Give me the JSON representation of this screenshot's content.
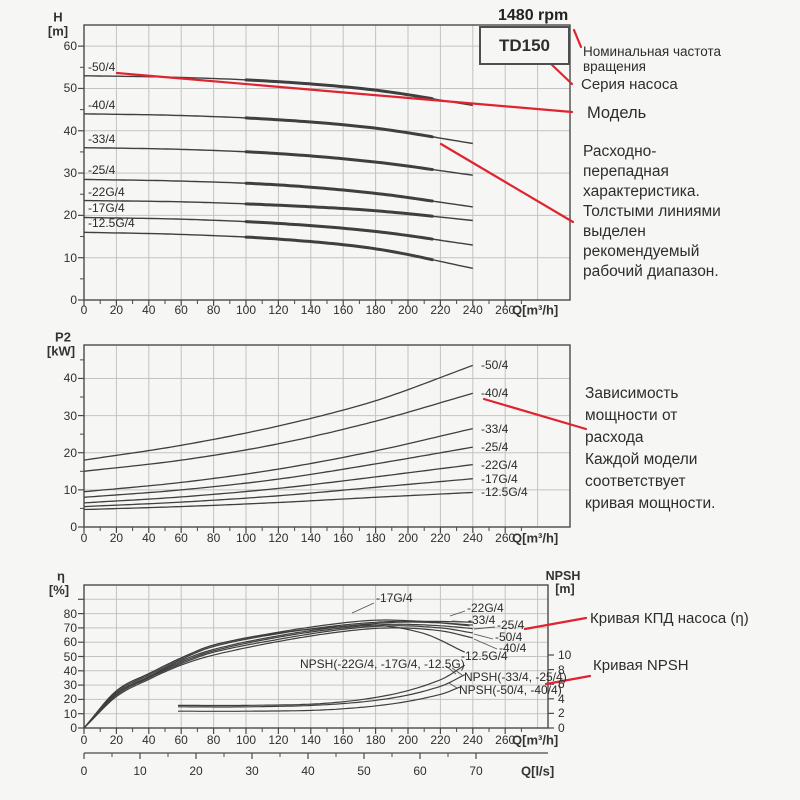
{
  "colors": {
    "accent_red": "#df2430",
    "curve": "#3f3f3f",
    "grid": "#c3c3c3",
    "border": "#4a4a4a",
    "text": "#2e2e2e"
  },
  "header": {
    "rpm": "1480 rpm",
    "series": "TD150"
  },
  "annotations": {
    "rpm_note": "Номинальная частота\nвращения",
    "series_note": "Серия насоса",
    "model_note": "Модель",
    "flow_note": "Расходно-\nперепадная\nхарактеристика.\nТолстыми линиями\nвыделен\nрекомендуемый\nрабочий диапазон.",
    "power_note": "Зависимость\nмощности от\nрасхода\nКаждой модели\nсоответствует\nкривая мощности.",
    "eta_note": "Кривая КПД насоса (η)",
    "npsh_note": "Кривая NPSH"
  },
  "chart_data": [
    {
      "id": "head",
      "type": "line",
      "title": "Head vs flow curves",
      "xlabel": "Q[m³/h]",
      "ylabel": "H",
      "yunit": "[m]",
      "xlim": [
        0,
        300
      ],
      "ylim": [
        0,
        65
      ],
      "x_ticks": [
        0,
        20,
        40,
        60,
        80,
        100,
        120,
        140,
        160,
        180,
        200,
        220,
        240,
        260
      ],
      "y_ticks": [
        0,
        10,
        20,
        30,
        40,
        50,
        60
      ],
      "grid": true,
      "recommended_range_q": [
        100,
        215
      ],
      "series": [
        {
          "name": "-50/4",
          "points": [
            [
              0,
              53
            ],
            [
              60,
              52.6
            ],
            [
              120,
              51.6
            ],
            [
              180,
              49.6
            ],
            [
              240,
              46
            ]
          ]
        },
        {
          "name": "-40/4",
          "points": [
            [
              0,
              44
            ],
            [
              60,
              43.6
            ],
            [
              120,
              42.6
            ],
            [
              180,
              40.6
            ],
            [
              240,
              37
            ]
          ]
        },
        {
          "name": "-33/4",
          "points": [
            [
              0,
              36
            ],
            [
              60,
              35.6
            ],
            [
              120,
              34.6
            ],
            [
              180,
              32.6
            ],
            [
              240,
              29.5
            ]
          ]
        },
        {
          "name": "-25/4",
          "points": [
            [
              0,
              28.5
            ],
            [
              60,
              28.1
            ],
            [
              120,
              27.2
            ],
            [
              180,
              25.2
            ],
            [
              240,
              22
            ]
          ]
        },
        {
          "name": "-22G/4",
          "points": [
            [
              0,
              23.5
            ],
            [
              60,
              23.2
            ],
            [
              120,
              22.4
            ],
            [
              180,
              21.1
            ],
            [
              240,
              18.8
            ]
          ]
        },
        {
          "name": "-17G/4",
          "points": [
            [
              0,
              19.5
            ],
            [
              60,
              19.1
            ],
            [
              120,
              18.1
            ],
            [
              180,
              16.2
            ],
            [
              240,
              13
            ]
          ]
        },
        {
          "name": "-12.5G/4",
          "points": [
            [
              0,
              16
            ],
            [
              60,
              15.5
            ],
            [
              120,
              14.4
            ],
            [
              180,
              12.1
            ],
            [
              240,
              7.5
            ]
          ]
        }
      ]
    },
    {
      "id": "power",
      "type": "line",
      "title": "Power vs flow curves",
      "xlabel": "Q[m³/h]",
      "ylabel": "P2",
      "yunit": "[kW]",
      "xlim": [
        0,
        300
      ],
      "ylim": [
        0,
        49
      ],
      "x_ticks": [
        0,
        20,
        40,
        60,
        80,
        100,
        120,
        140,
        160,
        180,
        200,
        220,
        240,
        260
      ],
      "y_ticks": [
        0,
        10,
        20,
        30,
        40
      ],
      "grid": true,
      "series": [
        {
          "name": "-50/4",
          "points": [
            [
              0,
              18
            ],
            [
              60,
              22
            ],
            [
              120,
              27.2
            ],
            [
              180,
              34
            ],
            [
              240,
              43.5
            ]
          ]
        },
        {
          "name": "-40/4",
          "points": [
            [
              0,
              15
            ],
            [
              60,
              18
            ],
            [
              120,
              22.4
            ],
            [
              180,
              28.5
            ],
            [
              240,
              36
            ]
          ]
        },
        {
          "name": "-33/4",
          "points": [
            [
              0,
              9.5
            ],
            [
              60,
              12
            ],
            [
              120,
              15.6
            ],
            [
              180,
              20.5
            ],
            [
              240,
              26.5
            ]
          ]
        },
        {
          "name": "-25/4",
          "points": [
            [
              0,
              8
            ],
            [
              60,
              10
            ],
            [
              120,
              12.9
            ],
            [
              180,
              17
            ],
            [
              240,
              21.5
            ]
          ]
        },
        {
          "name": "-22G/4",
          "points": [
            [
              0,
              6.5
            ],
            [
              60,
              8.1
            ],
            [
              120,
              10.4
            ],
            [
              180,
              13.5
            ],
            [
              240,
              16.8
            ]
          ]
        },
        {
          "name": "-17G/4",
          "points": [
            [
              0,
              5.5
            ],
            [
              60,
              6.7
            ],
            [
              120,
              8.4
            ],
            [
              180,
              10.7
            ],
            [
              240,
              13
            ]
          ]
        },
        {
          "name": "-12.5G/4",
          "points": [
            [
              0,
              4.7
            ],
            [
              60,
              5.5
            ],
            [
              120,
              6.6
            ],
            [
              180,
              8
            ],
            [
              240,
              9.3
            ]
          ]
        }
      ]
    },
    {
      "id": "eta_npsh",
      "type": "line",
      "title": "Efficiency and NPSH curves",
      "xlabel": "Q[m³/h]",
      "xlabel2": "Q[l/s]",
      "ylabel": "η",
      "yunit": "[%]",
      "y2label": "NPSH",
      "y2unit": "[m]",
      "xlim": [
        0,
        287
      ],
      "ylim": [
        0,
        100
      ],
      "y2lim": [
        0,
        12
      ],
      "x_ticks": [
        0,
        20,
        40,
        60,
        80,
        100,
        120,
        140,
        160,
        180,
        200,
        220,
        240,
        260
      ],
      "x2_ticks": [
        0,
        10,
        20,
        30,
        40,
        50,
        60,
        70
      ],
      "y_ticks": [
        0,
        10,
        20,
        30,
        40,
        50,
        60,
        70,
        80
      ],
      "y2_ticks": [
        0,
        2,
        4,
        6,
        8,
        10
      ],
      "grid": true,
      "eta_series": [
        {
          "name": "-17G/4",
          "points": [
            [
              0,
              0
            ],
            [
              20,
              26
            ],
            [
              40,
              38
            ],
            [
              60,
              49
            ],
            [
              80,
              58
            ],
            [
              120,
              67
            ],
            [
              160,
              73.5
            ],
            [
              185,
              75.5
            ],
            [
              215,
              74
            ],
            [
              238,
              71.5
            ]
          ]
        },
        {
          "name": "-22G/4",
          "points": [
            [
              0,
              0
            ],
            [
              20,
              25
            ],
            [
              40,
              37
            ],
            [
              60,
              48
            ],
            [
              80,
              57
            ],
            [
              120,
              66
            ],
            [
              160,
              72
            ],
            [
              190,
              74.5
            ],
            [
              220,
              74.5
            ],
            [
              240,
              74
            ]
          ]
        },
        {
          "name": "-33/4",
          "points": [
            [
              0,
              0
            ],
            [
              20,
              24
            ],
            [
              40,
              36
            ],
            [
              60,
              47
            ],
            [
              80,
              55
            ],
            [
              120,
              64.5
            ],
            [
              160,
              71
            ],
            [
              195,
              74
            ],
            [
              220,
              73.5
            ],
            [
              240,
              72
            ]
          ]
        },
        {
          "name": "-25/4",
          "points": [
            [
              0,
              0
            ],
            [
              20,
              24
            ],
            [
              40,
              35.5
            ],
            [
              60,
              46
            ],
            [
              80,
              54
            ],
            [
              120,
              63.5
            ],
            [
              160,
              70
            ],
            [
              190,
              72.5
            ],
            [
              220,
              71.5
            ],
            [
              240,
              69.5
            ]
          ]
        },
        {
          "name": "-50/4",
          "points": [
            [
              0,
              0
            ],
            [
              20,
              23
            ],
            [
              40,
              35
            ],
            [
              60,
              45
            ],
            [
              80,
              53
            ],
            [
              120,
              62
            ],
            [
              160,
              69
            ],
            [
              190,
              71.5
            ],
            [
              220,
              70
            ],
            [
              240,
              66.5
            ]
          ]
        },
        {
          "name": "-40/4",
          "points": [
            [
              0,
              0
            ],
            [
              20,
              22
            ],
            [
              40,
              34
            ],
            [
              60,
              44
            ],
            [
              80,
              51
            ],
            [
              120,
              60.5
            ],
            [
              160,
              67.5
            ],
            [
              190,
              70
            ],
            [
              220,
              68
            ],
            [
              240,
              63
            ]
          ]
        },
        {
          "name": "-12.5G/4",
          "points": [
            [
              0,
              0
            ],
            [
              20,
              26
            ],
            [
              40,
              38
            ],
            [
              60,
              49
            ],
            [
              80,
              58
            ],
            [
              120,
              66.5
            ],
            [
              160,
              71
            ],
            [
              180,
              72
            ],
            [
              210,
              66
            ],
            [
              235,
              53
            ]
          ]
        }
      ],
      "npsh_series": [
        {
          "name": "NPSH(-33/4, -25/4)",
          "points": [
            [
              58,
              3.1
            ],
            [
              100,
              3.1
            ],
            [
              150,
              3.4
            ],
            [
              190,
              4.6
            ],
            [
              220,
              6.6
            ],
            [
              235,
              8.6
            ]
          ]
        },
        {
          "name": "NPSH(-50/4, -40/4)",
          "points": [
            [
              58,
              2.9
            ],
            [
              100,
              2.9
            ],
            [
              150,
              3.2
            ],
            [
              190,
              4.1
            ],
            [
              220,
              5.7
            ],
            [
              235,
              7.3
            ]
          ]
        },
        {
          "name": "NPSH(-22G/4, -17G/4, -12.5G)",
          "points": [
            [
              58,
              2.3
            ],
            [
              100,
              2.3
            ],
            [
              150,
              2.5
            ],
            [
              190,
              3.3
            ],
            [
              220,
              4.6
            ],
            [
              232,
              5.6
            ]
          ]
        }
      ]
    }
  ]
}
